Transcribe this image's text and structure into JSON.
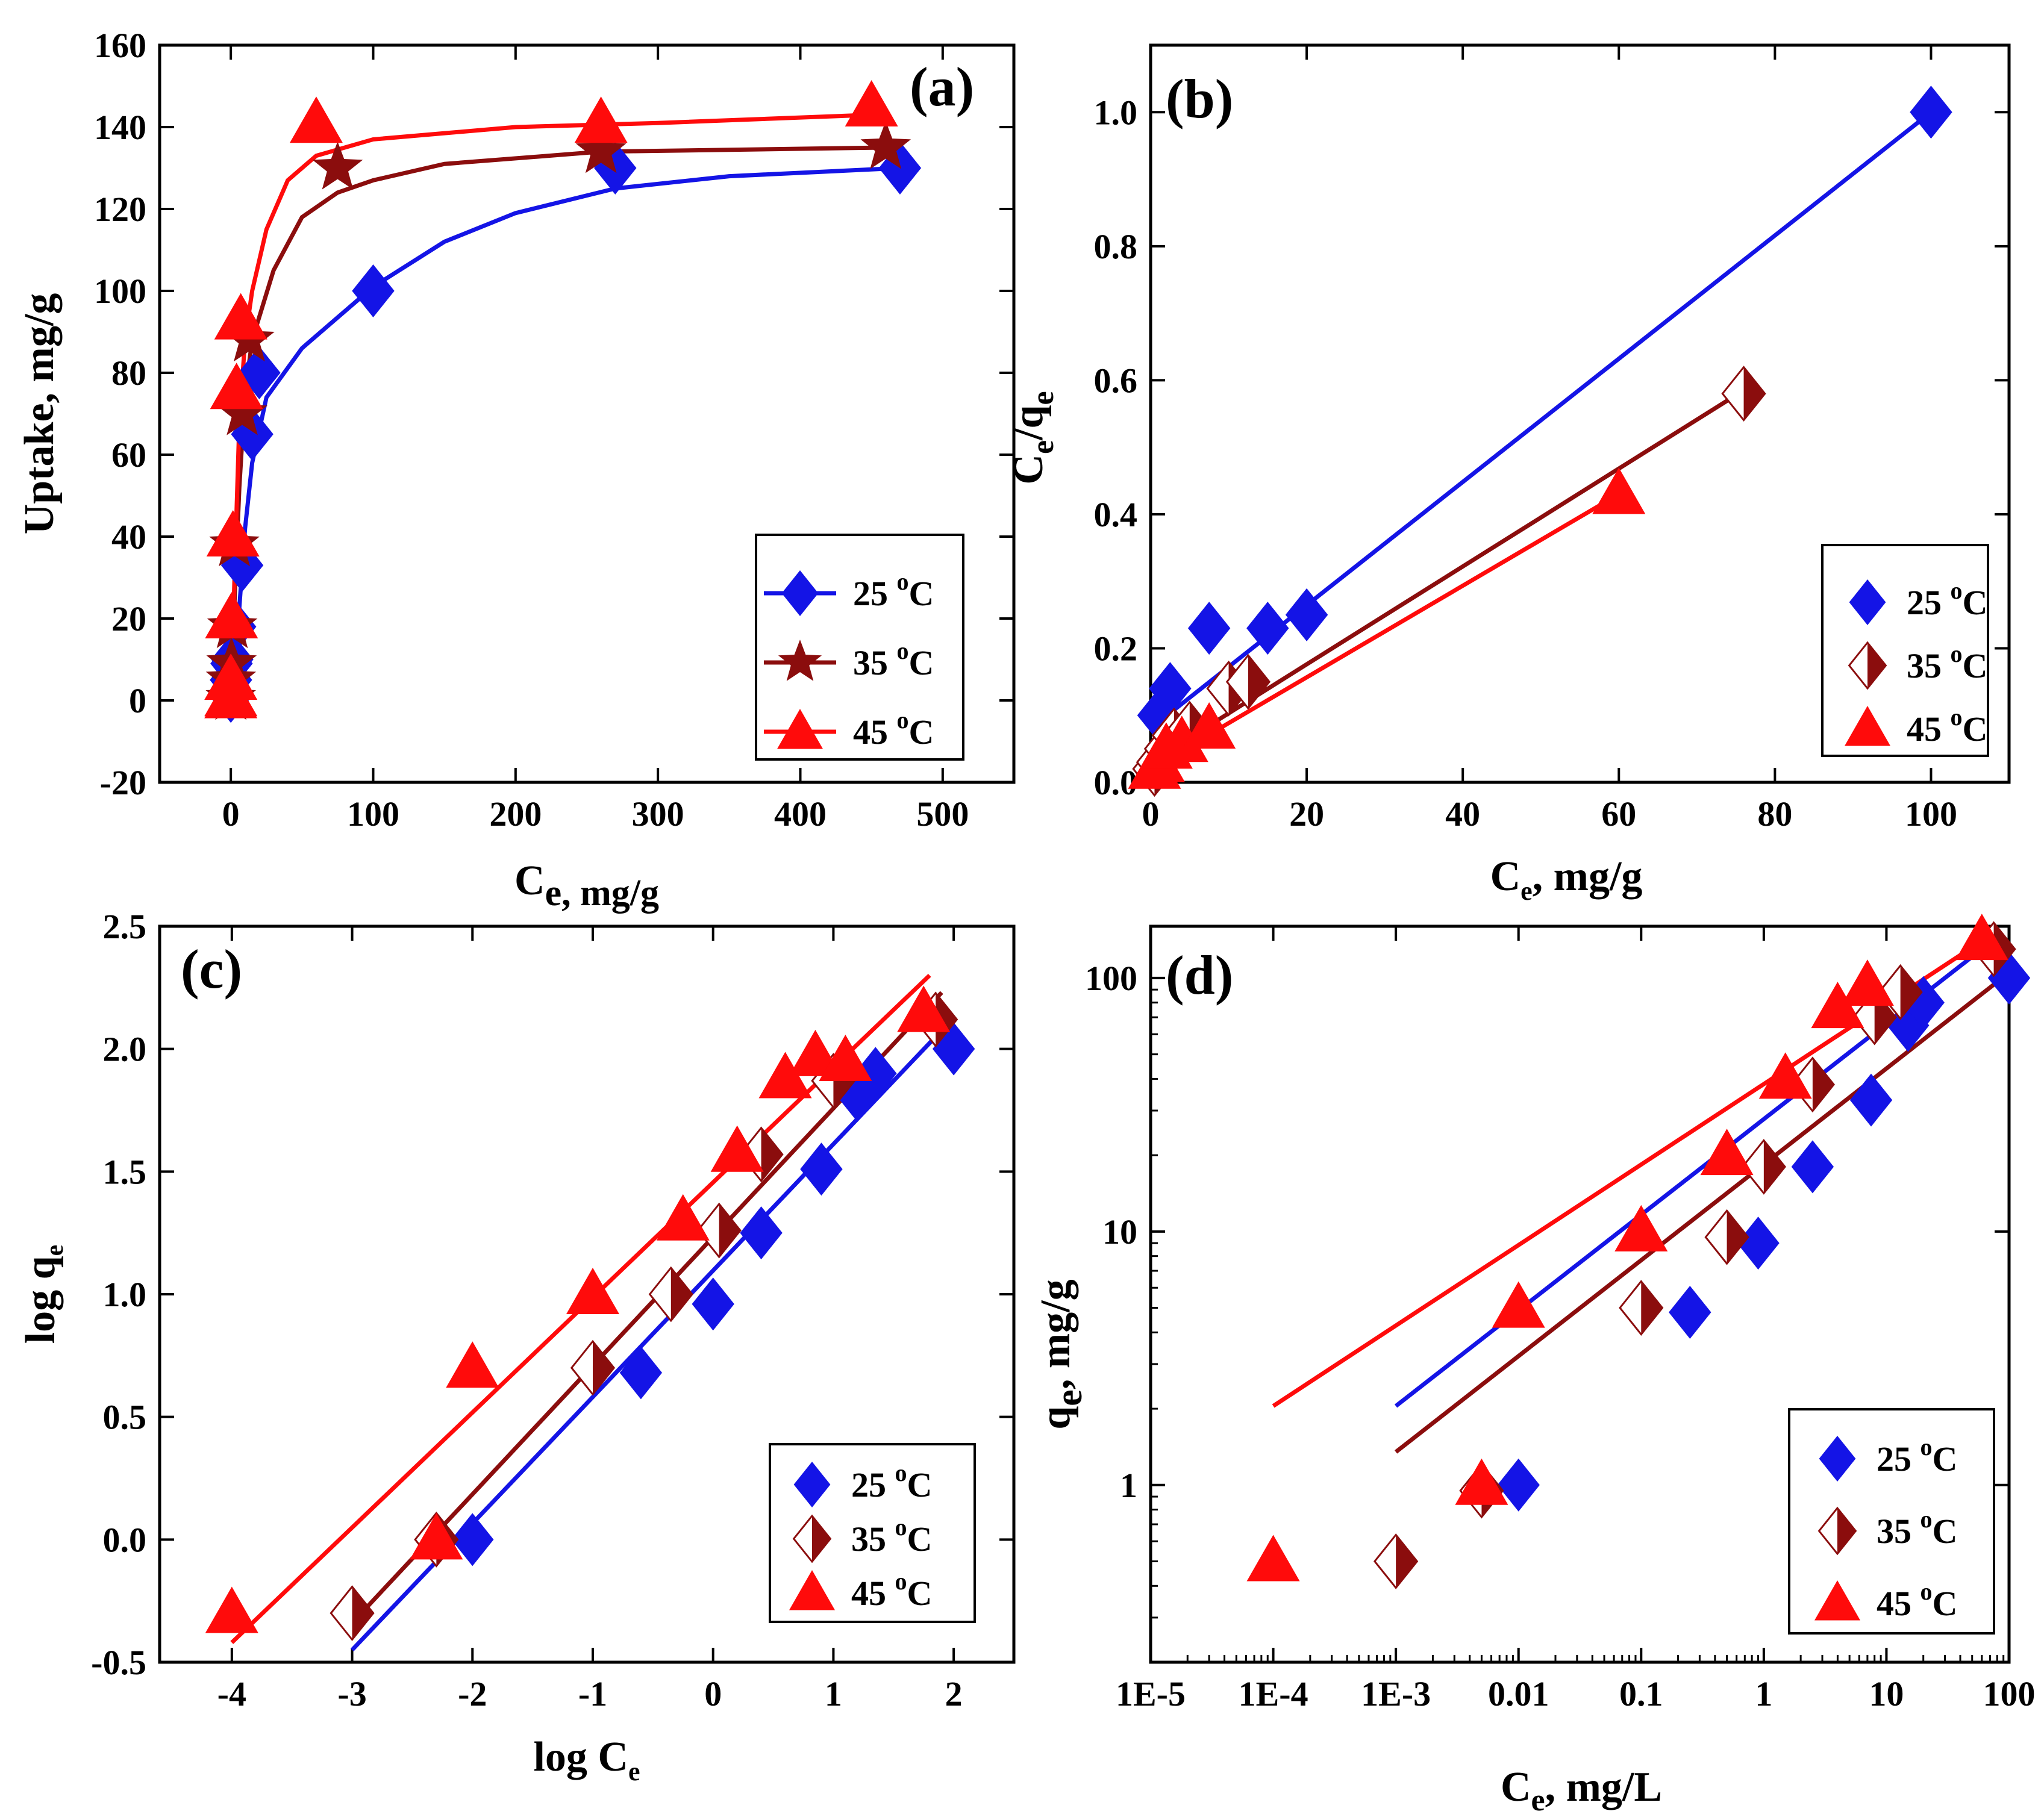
{
  "colors": {
    "blue": "#1414e6",
    "darkred": "#8b0d0d",
    "red": "#ff0b0b"
  },
  "chart_data": [
    {
      "type": "scatter",
      "panel_label": "(a)",
      "xlabel": {
        "main": "C",
        "sub": "e, mg/g"
      },
      "ylabel": "Uptake, mg/g",
      "xlim": [
        -50,
        550
      ],
      "ylim": [
        -20,
        160
      ],
      "xticks": [
        "0",
        "100",
        "200",
        "300",
        "400",
        "500"
      ],
      "yticks": [
        "-20",
        "0",
        "20",
        "40",
        "60",
        "80",
        "100",
        "120",
        "140",
        "160"
      ],
      "legend_position": "bottom-right",
      "series": [
        {
          "name": "25",
          "deg": "o",
          "unit": "C",
          "color": "#1414e6",
          "marker": "diamond",
          "x": [
            0.01,
            0.1,
            0.5,
            1,
            3,
            8,
            15,
            20,
            100,
            270,
            470
          ],
          "y": [
            1,
            5,
            9,
            10,
            18,
            33,
            65,
            80,
            100,
            130,
            130
          ],
          "fit": [
            [
              0,
              0
            ],
            [
              5,
              18
            ],
            [
              10,
              42
            ],
            [
              15,
              58
            ],
            [
              25,
              74
            ],
            [
              50,
              86
            ],
            [
              100,
              101
            ],
            [
              150,
              112
            ],
            [
              200,
              119
            ],
            [
              270,
              125
            ],
            [
              350,
              128
            ],
            [
              470,
              130
            ]
          ]
        },
        {
          "name": "35",
          "deg": "o",
          "unit": "C",
          "color": "#8b0d0d",
          "marker": "star",
          "x": [
            0.01,
            0.1,
            0.5,
            1,
            2.5,
            8,
            13,
            75,
            260,
            460
          ],
          "y": [
            0.5,
            5,
            9,
            18,
            38,
            70,
            88,
            130,
            134,
            135
          ],
          "fit": [
            [
              0,
              0
            ],
            [
              3,
              28
            ],
            [
              6,
              52
            ],
            [
              10,
              75
            ],
            [
              15,
              88
            ],
            [
              30,
              105
            ],
            [
              50,
              118
            ],
            [
              75,
              124
            ],
            [
              100,
              127
            ],
            [
              150,
              131
            ],
            [
              260,
              134
            ],
            [
              460,
              135
            ]
          ]
        },
        {
          "name": "45",
          "deg": "o",
          "unit": "C",
          "color": "#ff0b0b",
          "marker": "triangle",
          "x": [
            0.0001,
            0.005,
            0.01,
            0.5,
            1.5,
            4,
            7,
            60,
            260,
            450
          ],
          "y": [
            0.5,
            1,
            5,
            20,
            40,
            76,
            93,
            141,
            141,
            145
          ],
          "fit": [
            [
              0,
              0
            ],
            [
              3,
              35
            ],
            [
              6,
              68
            ],
            [
              10,
              88
            ],
            [
              15,
              100
            ],
            [
              25,
              115
            ],
            [
              40,
              127
            ],
            [
              60,
              133
            ],
            [
              100,
              137
            ],
            [
              200,
              140
            ],
            [
              300,
              141
            ],
            [
              450,
              143
            ]
          ]
        }
      ]
    },
    {
      "type": "scatter",
      "panel_label": "(b)",
      "xlabel": {
        "main": "C",
        "sub": "e",
        "rest": ", mg/g"
      },
      "ylabel": {
        "a": "C",
        "a_sub": "e",
        "b": "/q",
        "b_sub": "e"
      },
      "xlim": [
        0,
        110
      ],
      "ylim": [
        0,
        1.1
      ],
      "xticks": [
        "0",
        "20",
        "40",
        "60",
        "80",
        "100"
      ],
      "yticks": [
        "0.0",
        "0.2",
        "0.4",
        "0.6",
        "0.8",
        "1.0"
      ],
      "legend_position": "bottom-right",
      "series": [
        {
          "name": "25",
          "deg": "o",
          "unit": "C",
          "color": "#1414e6",
          "marker": "diamond",
          "x": [
            1,
            2.5,
            7.5,
            15,
            20,
            100
          ],
          "y": [
            0.1,
            0.14,
            0.23,
            0.23,
            0.25,
            1.0
          ],
          "fit": [
            [
              0.5,
              0.085
            ],
            [
              100,
              1.0
            ]
          ]
        },
        {
          "name": "35",
          "deg": "o",
          "unit": "C",
          "color": "#8b0d0d",
          "marker": "half-diamond",
          "x": [
            0.5,
            1,
            2,
            3,
            5,
            10,
            12.5,
            76
          ],
          "y": [
            0.02,
            0.03,
            0.05,
            0.07,
            0.08,
            0.14,
            0.15,
            0.58
          ],
          "fit": [
            [
              0,
              0.03
            ],
            [
              76,
              0.585
            ]
          ]
        },
        {
          "name": "45",
          "deg": "o",
          "unit": "C",
          "color": "#ff0b0b",
          "marker": "triangle",
          "x": [
            0.5,
            1,
            2,
            4,
            7.5,
            60
          ],
          "y": [
            0.02,
            0.03,
            0.05,
            0.06,
            0.08,
            0.43
          ],
          "fit": [
            [
              0,
              0.02
            ],
            [
              60,
              0.43
            ]
          ]
        }
      ]
    },
    {
      "type": "scatter",
      "panel_label": "(c)",
      "xlabel": {
        "main": "log C",
        "sub": "e"
      },
      "ylabel": {
        "main": "log q",
        "sub": "e"
      },
      "xlim": [
        -4.6,
        2.5
      ],
      "ylim": [
        -0.5,
        2.5
      ],
      "xticks": [
        "-4",
        "-3",
        "-2",
        "-1",
        "0",
        "1",
        "2"
      ],
      "yticks": [
        "-0.5",
        "0.0",
        "0.5",
        "1.0",
        "1.5",
        "2.0",
        "2.5"
      ],
      "legend_position": "bottom-right",
      "series": [
        {
          "name": "25",
          "deg": "o",
          "unit": "C",
          "color": "#1414e6",
          "marker": "diamond",
          "x": [
            -2,
            -0.6,
            0,
            0.4,
            0.9,
            1.2,
            1.35,
            2.0
          ],
          "y": [
            0,
            0.68,
            0.96,
            1.25,
            1.51,
            1.81,
            1.9,
            2.0
          ],
          "fit": [
            [
              -3,
              -0.45
            ],
            [
              1.85,
              2.05
            ]
          ]
        },
        {
          "name": "35",
          "deg": "o",
          "unit": "C",
          "color": "#8b0d0d",
          "marker": "half-diamond",
          "x": [
            -3,
            -2.3,
            -1,
            -0.35,
            0.05,
            0.4,
            1.0,
            1.85
          ],
          "y": [
            -0.3,
            0,
            0.7,
            1.0,
            1.26,
            1.57,
            1.87,
            2.12
          ],
          "fit": [
            [
              -3,
              -0.34
            ],
            [
              1.9,
              2.23
            ]
          ]
        },
        {
          "name": "45",
          "deg": "o",
          "unit": "C",
          "color": "#ff0b0b",
          "marker": "triangle",
          "x": [
            -4,
            -2.3,
            -2,
            -1,
            -0.25,
            0.2,
            0.6,
            0.85,
            1.1,
            1.75
          ],
          "y": [
            -0.3,
            0,
            0.7,
            1.0,
            1.3,
            1.58,
            1.88,
            1.97,
            1.95,
            2.15
          ],
          "fit": [
            [
              -4,
              -0.42
            ],
            [
              1.8,
              2.3
            ]
          ]
        }
      ]
    },
    {
      "type": "scatter",
      "panel_label": "(d)",
      "xscale": "log",
      "yscale": "log",
      "xlabel": {
        "main": "C",
        "sub": "e",
        "rest": ", mg/L"
      },
      "ylabel": {
        "main": "q",
        "sub": "e",
        "rest": ", mg/g"
      },
      "xlim": [
        1e-05,
        100
      ],
      "ylim": [
        0.2,
        160
      ],
      "xticks": [
        "1E-5",
        "1E-4",
        "1E-3",
        "0.01",
        "0.1",
        "1",
        "10",
        "100"
      ],
      "yticks": [
        "1",
        "10",
        "100"
      ],
      "legend_position": "bottom-right",
      "series": [
        {
          "name": "25",
          "deg": "o",
          "unit": "C",
          "color": "#1414e6",
          "marker": "diamond",
          "x": [
            0.01,
            0.25,
            0.9,
            2.5,
            7.5,
            15,
            20,
            100
          ],
          "y": [
            1,
            4.8,
            9,
            18,
            33,
            65,
            80,
            100
          ],
          "fit": [
            [
              0.001,
              2.05
            ],
            [
              60,
              130
            ]
          ]
        },
        {
          "name": "35",
          "deg": "o",
          "unit": "C",
          "color": "#8b0d0d",
          "marker": "half-diamond",
          "x": [
            0.001,
            0.005,
            0.1,
            0.5,
            1,
            2.5,
            8,
            13,
            75
          ],
          "y": [
            0.5,
            0.95,
            5,
            9.5,
            18,
            38,
            70,
            88,
            130
          ],
          "fit": [
            [
              0.001,
              1.35
            ],
            [
              100,
              105
            ]
          ]
        },
        {
          "name": "45",
          "deg": "o",
          "unit": "C",
          "color": "#ff0b0b",
          "marker": "triangle",
          "x": [
            0.0001,
            0.005,
            0.01,
            0.1,
            0.5,
            1.5,
            4,
            7,
            60
          ],
          "y": [
            0.5,
            1.0,
            5,
            10,
            20,
            40,
            76,
            93,
            141
          ],
          "fit": [
            [
              0.0001,
              2.05
            ],
            [
              60,
              140
            ]
          ]
        }
      ]
    }
  ]
}
